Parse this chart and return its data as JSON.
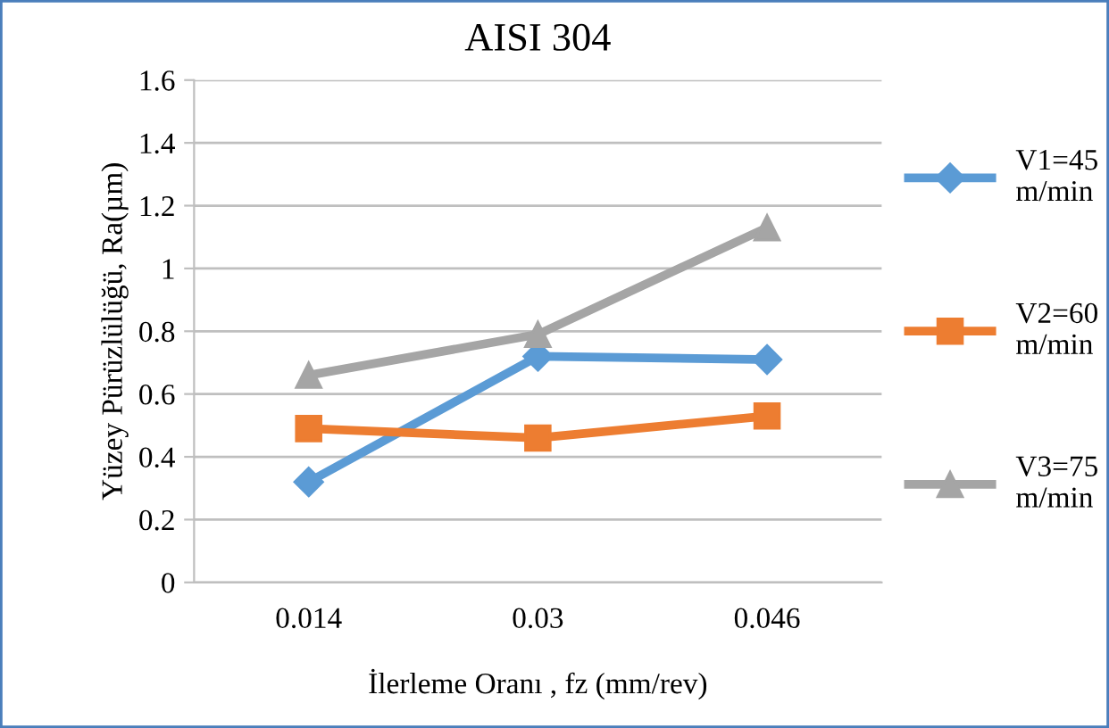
{
  "chart_data": {
    "type": "line",
    "title": "AISI 304",
    "xlabel": "İlerleme Oranı , fz (mm/rev)",
    "ylabel": "Yüzey Pürüzlülüğü, Ra(µm)",
    "categories": [
      "0.014",
      "0.03",
      "0.046"
    ],
    "series": [
      {
        "name": "V1=45 m/min",
        "color": "#5b9bd5",
        "marker": "diamond",
        "values": [
          0.32,
          0.72,
          0.71
        ]
      },
      {
        "name": "V2=60 m/min",
        "color": "#ed7d31",
        "marker": "square",
        "values": [
          0.49,
          0.46,
          0.53
        ]
      },
      {
        "name": "V3=75 m/min",
        "color": "#a5a5a5",
        "marker": "triangle",
        "values": [
          0.66,
          0.79,
          1.13
        ]
      }
    ],
    "ylim": [
      0,
      1.6
    ],
    "yticks": [
      0,
      0.2,
      0.4,
      0.6,
      0.8,
      1,
      1.2,
      1.4,
      1.6
    ],
    "grid": "y",
    "legend": "right",
    "line_style": "solid"
  }
}
